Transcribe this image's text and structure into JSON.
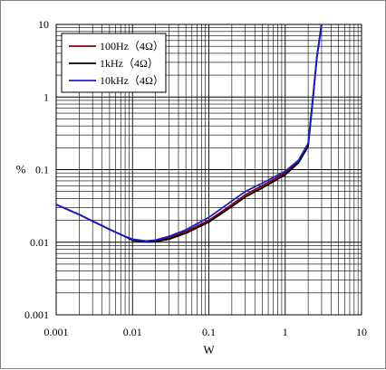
{
  "chart_data": {
    "type": "line",
    "title": "",
    "xlabel": "W",
    "ylabel": "%",
    "xscale": "log",
    "yscale": "log",
    "xlim": [
      0.001,
      10
    ],
    "ylim": [
      0.001,
      10
    ],
    "x_tick_labels": [
      "0.001",
      "0.01",
      "0.1",
      "1",
      "10"
    ],
    "y_tick_labels": [
      "10",
      "1",
      "0.1",
      "0.01",
      "0.001"
    ],
    "grid": true,
    "legend_position": "top-left",
    "series": [
      {
        "name": "100Hz（4Ω）",
        "color": "#8b0000",
        "x": [
          0.001,
          0.002,
          0.005,
          0.008,
          0.01,
          0.015,
          0.02,
          0.03,
          0.05,
          0.1,
          0.2,
          0.3,
          0.5,
          1.0,
          1.5,
          2.0,
          2.3,
          2.6,
          3.0
        ],
        "y": [
          0.033,
          0.024,
          0.015,
          0.012,
          0.0108,
          0.0103,
          0.0105,
          0.0115,
          0.014,
          0.02,
          0.033,
          0.045,
          0.06,
          0.09,
          0.13,
          0.22,
          0.9,
          3.5,
          10.0
        ]
      },
      {
        "name": "1kHz（4Ω）",
        "color": "#000000",
        "x": [
          0.001,
          0.002,
          0.005,
          0.008,
          0.01,
          0.015,
          0.02,
          0.03,
          0.05,
          0.1,
          0.2,
          0.3,
          0.5,
          1.0,
          1.5,
          2.0,
          2.3,
          2.6,
          3.0
        ],
        "y": [
          0.033,
          0.024,
          0.015,
          0.012,
          0.0106,
          0.0101,
          0.0102,
          0.011,
          0.0133,
          0.019,
          0.031,
          0.042,
          0.056,
          0.085,
          0.125,
          0.21,
          0.9,
          3.5,
          10.0
        ]
      },
      {
        "name": "10kHz（4Ω）",
        "color": "#1c1cd6",
        "x": [
          0.001,
          0.002,
          0.005,
          0.008,
          0.01,
          0.015,
          0.02,
          0.03,
          0.05,
          0.1,
          0.2,
          0.3,
          0.5,
          1.0,
          1.5,
          2.0,
          2.3,
          2.6,
          3.0
        ],
        "y": [
          0.033,
          0.024,
          0.015,
          0.012,
          0.011,
          0.0104,
          0.0107,
          0.012,
          0.0148,
          0.022,
          0.037,
          0.05,
          0.065,
          0.095,
          0.135,
          0.23,
          0.95,
          3.6,
          10.0
        ]
      }
    ]
  }
}
